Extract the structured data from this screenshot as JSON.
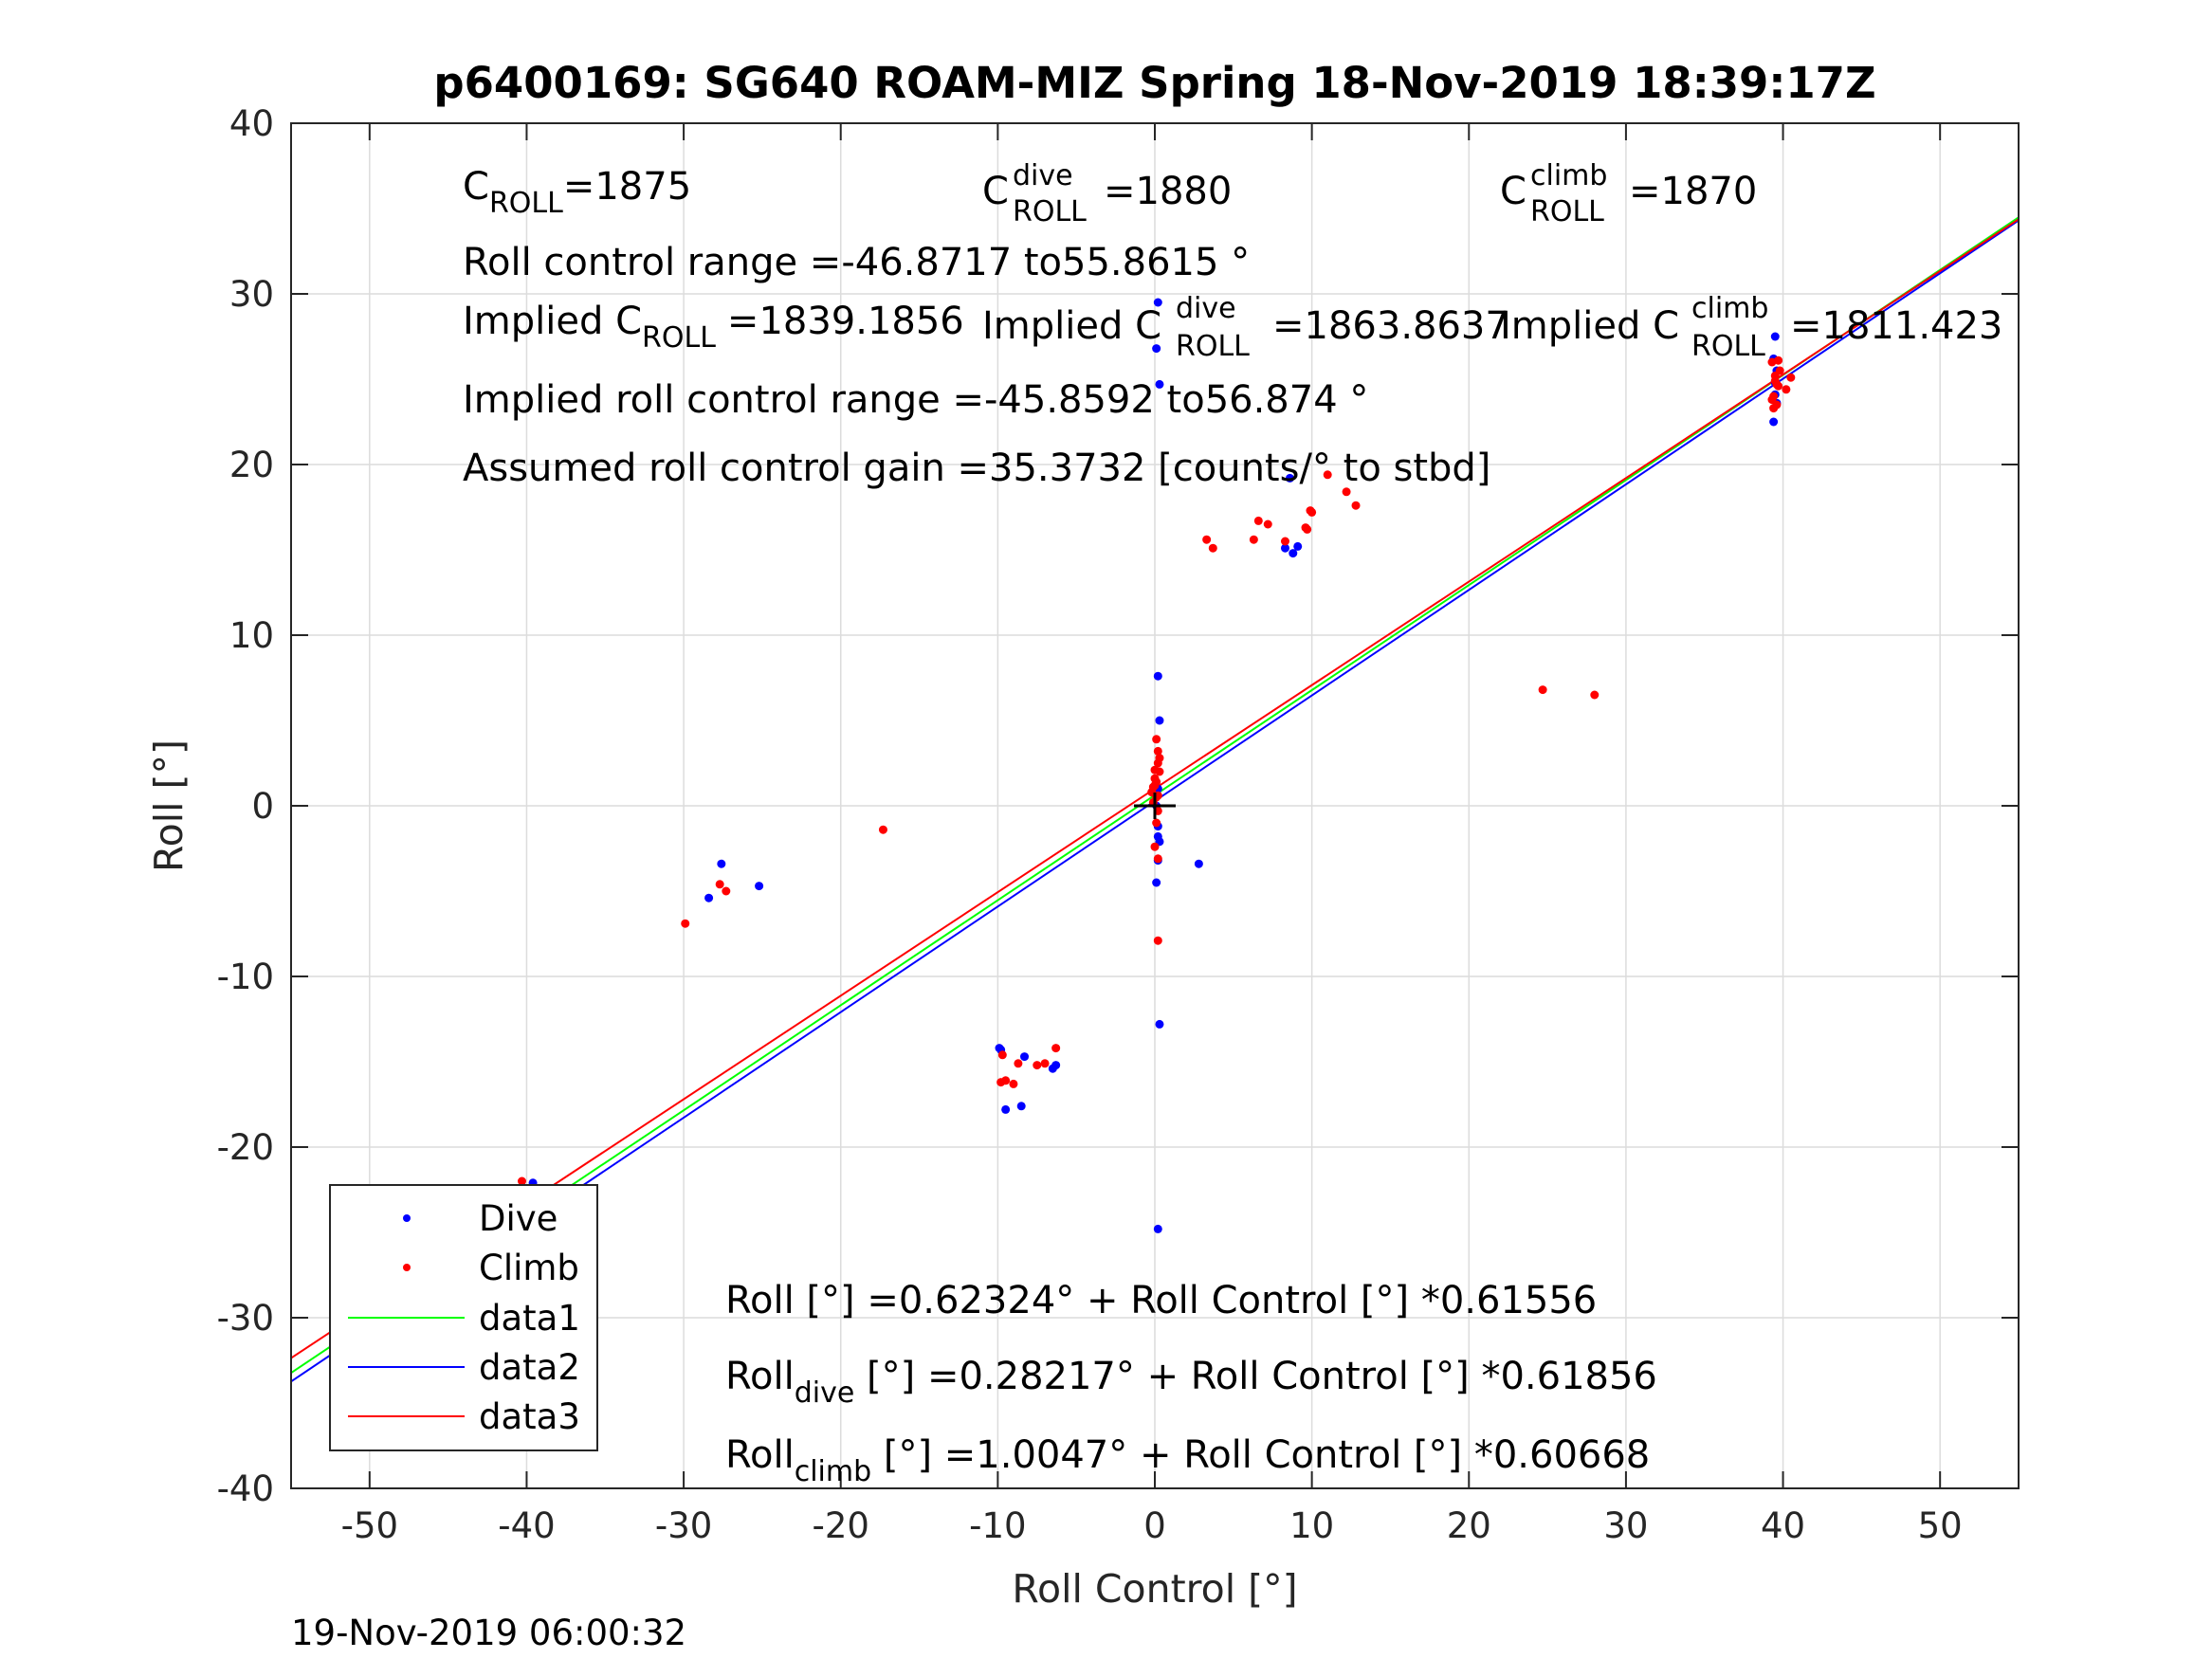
{
  "chart_data": {
    "type": "scatter",
    "title": "p6400169: SG640 ROAM-MIZ Spring 18-Nov-2019 18:39:17Z",
    "xlabel": "Roll Control [°]",
    "ylabel": "Roll [°]",
    "xlim": [
      -55,
      55
    ],
    "ylim": [
      -40,
      40
    ],
    "xticks": [
      -50,
      -40,
      -30,
      -20,
      -10,
      0,
      10,
      20,
      30,
      40,
      50
    ],
    "yticks": [
      -40,
      -30,
      -20,
      -10,
      0,
      10,
      20,
      30,
      40
    ],
    "grid": true,
    "legend_position": "bottom-left",
    "footer": "19-Nov-2019 06:00:32",
    "series": [
      {
        "name": "Dive",
        "kind": "points",
        "color": "#0000ff",
        "x": [
          -40.2,
          -40.0,
          -39.8,
          -40.4,
          -39.9,
          -40.1,
          -39.7,
          -40.3,
          -39.8,
          -40.0,
          -39.6,
          -40.5,
          -39.9,
          -40.2,
          -39.7,
          -40.1,
          -40.0,
          -39.8,
          -9.9,
          -9.8,
          -9.5,
          -8.5,
          -8.3,
          -6.5,
          -6.3,
          -27.6,
          -28.4,
          -25.2,
          0.2,
          0.1,
          0.3,
          0.2,
          0.3,
          0.2,
          0.1,
          0.2,
          0.3,
          0.2,
          0.1,
          0.3,
          0.2,
          0.2,
          2.8,
          8.3,
          8.8,
          9.1,
          8.6,
          39.5,
          39.4,
          39.6,
          39.5,
          39.4,
          39.6,
          39.5
        ],
        "y": [
          -22.4,
          -22.8,
          -23.2,
          -23.6,
          -24.0,
          -24.5,
          -24.9,
          -25.3,
          -25.7,
          -26.1,
          -22.1,
          -23.0,
          -24.3,
          -25.0,
          -25.6,
          -24.7,
          -23.9,
          -22.6,
          -14.2,
          -14.3,
          -17.8,
          -17.6,
          -14.7,
          -15.4,
          -15.2,
          -3.4,
          -5.4,
          -4.7,
          29.5,
          26.8,
          24.7,
          7.6,
          5.0,
          1.0,
          0.0,
          -1.2,
          -2.1,
          -3.2,
          -4.5,
          -12.8,
          -24.8,
          -1.8,
          -3.4,
          15.1,
          14.8,
          15.2,
          19.2,
          27.5,
          22.5,
          25.5,
          24.1,
          26.2,
          23.6,
          24.8
        ]
      },
      {
        "name": "Climb",
        "kind": "points",
        "color": "#ff0000",
        "x": [
          -40.3,
          -40.1,
          -39.9,
          -40.5,
          -39.8,
          -40.2,
          -40.0,
          -39.7,
          -40.4,
          -39.9,
          -40.1,
          -39.6,
          -40.0,
          -29.9,
          -27.7,
          -27.3,
          -17.3,
          -9.7,
          -9.5,
          -9.0,
          -8.7,
          -7.5,
          -7.0,
          -6.3,
          -9.8,
          -0.1,
          0.0,
          0.2,
          0.1,
          -0.2,
          0.3,
          0.0,
          0.2,
          0.1,
          -0.1,
          0.2,
          0.0,
          0.1,
          0.2,
          0.3,
          0.1,
          0.0,
          0.2,
          0.2,
          3.3,
          3.7,
          6.3,
          6.6,
          7.2,
          8.3,
          9.6,
          9.9,
          10.0,
          9.7,
          11.0,
          12.2,
          12.8,
          24.7,
          28.0,
          39.3,
          39.5,
          39.7,
          39.4,
          39.6,
          39.8,
          39.5,
          39.3,
          39.7,
          40.2,
          40.5,
          39.4,
          39.6
        ],
        "y": [
          -22.0,
          -22.6,
          -23.1,
          -23.5,
          -24.2,
          -24.6,
          -25.2,
          -25.8,
          -27.1,
          -23.8,
          -22.9,
          -24.9,
          -26.3,
          -6.9,
          -4.6,
          -5.0,
          -1.4,
          -14.6,
          -16.1,
          -16.3,
          -15.1,
          -15.2,
          -15.1,
          -14.2,
          -16.2,
          0.2,
          1.2,
          2.5,
          3.9,
          0.8,
          2.0,
          1.6,
          -0.3,
          0.5,
          1.1,
          3.2,
          2.1,
          1.4,
          0.6,
          2.8,
          -1.0,
          -2.4,
          -7.9,
          -3.1,
          15.6,
          15.1,
          15.6,
          16.7,
          16.5,
          15.5,
          16.3,
          17.3,
          17.2,
          16.2,
          19.4,
          18.4,
          17.6,
          6.8,
          6.5,
          26.0,
          25.2,
          24.6,
          24.0,
          23.5,
          25.5,
          24.9,
          23.8,
          26.1,
          24.4,
          25.1,
          23.3,
          24.7
        ]
      },
      {
        "name": "data1",
        "kind": "line",
        "color": "#00ff00",
        "x": [
          -55,
          55
        ],
        "y": [
          -33.2326,
          34.479
        ]
      },
      {
        "name": "data2",
        "kind": "line",
        "color": "#0000ff",
        "x": [
          -55,
          55
        ],
        "y": [
          -33.7386,
          34.303
        ]
      },
      {
        "name": "data3",
        "kind": "line",
        "color": "#ff0000",
        "x": [
          -55,
          55
        ],
        "y": [
          -32.3627,
          34.3721
        ]
      }
    ],
    "crosshair": {
      "x": 0,
      "y": 0
    }
  },
  "annotations": {
    "c_roll": {
      "base": "C",
      "sub": "ROLL",
      "value": "=1875"
    },
    "c_roll_dive": {
      "base": "C",
      "sup": "dive",
      "sub": "ROLL",
      "value": "=1880"
    },
    "c_roll_climb": {
      "base": "C",
      "sup": "climb",
      "sub": "ROLL",
      "value": "=1870"
    },
    "roll_range": "Roll control range =-46.8717 to55.8615 °",
    "implied_c_roll": {
      "pre": "Implied C",
      "sub": "ROLL",
      "value": "=1839.1856"
    },
    "implied_c_roll_dive": {
      "pre": "Implied C",
      "sup": "dive",
      "sub": "ROLL",
      "value": "=1863.8637"
    },
    "implied_c_roll_climb": {
      "pre": "Implied C",
      "sup": "climb",
      "sub": "ROLL",
      "value": "=1811.423"
    },
    "implied_range": "Implied roll control range =-45.8592 to56.874 °",
    "gain": "Assumed roll control gain =35.3732 [counts/° to stbd]",
    "fit_all": "Roll [°] =0.62324° + Roll Control [°] *0.61556",
    "fit_dive": {
      "pre": "Roll",
      "sub": "dive",
      "post": " [°] =0.28217° + Roll Control [°] *0.61856"
    },
    "fit_climb": {
      "pre": "Roll",
      "sub": "climb",
      "post": " [°] =1.0047° + Roll Control [°] *0.60668"
    }
  }
}
